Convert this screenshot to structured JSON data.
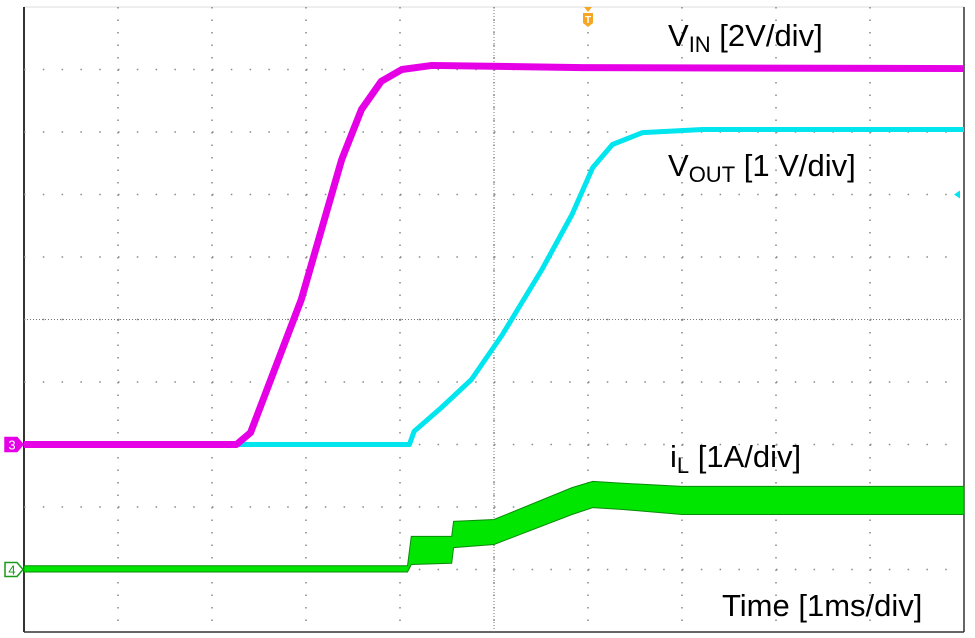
{
  "chart_data": {
    "type": "line",
    "title": "",
    "xlabel": "Time [1ms/div]",
    "x_unit": "ms",
    "xlim": [
      0,
      10
    ],
    "divisions": {
      "horizontal": 10,
      "vertical": 10
    },
    "grid": true,
    "background": "#ffffff",
    "trigger_marker": {
      "label": "T",
      "time_ms": 6.0,
      "color": "#f5a623"
    },
    "series": [
      {
        "name": "VIN",
        "label_main": "V",
        "label_sub": "IN",
        "label_scale": " [2V/div]",
        "channel_marker": "3",
        "color": "#e600e6",
        "unit": "V",
        "volts_per_div": 2,
        "ground_div_from_bottom": 3,
        "x": [
          0,
          2.26,
          2.41,
          2.95,
          3.38,
          3.59,
          3.8,
          4.02,
          4.34,
          5.94,
          10
        ],
        "y": [
          0,
          0,
          0.38,
          4.64,
          9.12,
          10.72,
          11.62,
          12.0,
          12.13,
          12.06,
          12.03
        ]
      },
      {
        "name": "VOUT",
        "label_main": "V",
        "label_sub": "OUT",
        "label_scale": " [1 V/div]",
        "channel_marker": "",
        "color": "#00e5ee",
        "unit": "V",
        "volts_per_div": 1,
        "ground_div_from_bottom": 3,
        "x": [
          0,
          4.1,
          4.15,
          4.44,
          4.76,
          5.09,
          5.51,
          5.83,
          6.05,
          6.26,
          6.58,
          7.22,
          10
        ],
        "y": [
          0,
          0,
          0.21,
          0.59,
          1.04,
          1.76,
          2.8,
          3.68,
          4.43,
          4.8,
          4.99,
          5.04,
          5.04
        ]
      },
      {
        "name": "iL",
        "label_main": "i",
        "label_sub": "L",
        "label_scale": " [1A/div]",
        "channel_marker": "4",
        "color": "#00e600",
        "unit": "A",
        "amps_per_div": 1,
        "ground_div_from_bottom": 1,
        "x": [
          0,
          4.08,
          4.12,
          4.55,
          4.57,
          5.0,
          5.83,
          6.05,
          6.37,
          7.0,
          10
        ],
        "upper": [
          0.06,
          0.06,
          0.53,
          0.53,
          0.77,
          0.8,
          1.31,
          1.41,
          1.38,
          1.33,
          1.33
        ],
        "lower": [
          -0.04,
          -0.04,
          0.08,
          0.1,
          0.35,
          0.4,
          0.88,
          0.99,
          0.96,
          0.88,
          0.88
        ]
      }
    ]
  }
}
